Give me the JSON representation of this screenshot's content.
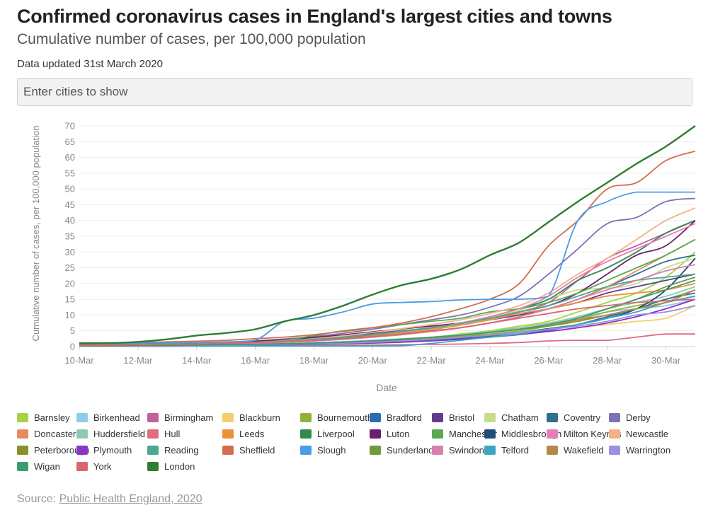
{
  "header": {
    "title": "Confirmed coronavirus cases in England's largest cities and towns",
    "subtitle": "Cumulative number of cases, per 100,000 population",
    "updated": "Data updated 31st March 2020"
  },
  "search": {
    "placeholder": "Enter cities to show"
  },
  "footer": {
    "source_prefix": "Source: ",
    "source_link": "Public Health England, 2020"
  },
  "chart_data": {
    "type": "line",
    "xlabel": "Date",
    "ylabel": "Cumulative number of cases, per 100,000 population",
    "ylim": [
      0,
      70
    ],
    "yticks": [
      0,
      5,
      10,
      15,
      20,
      25,
      30,
      35,
      40,
      45,
      50,
      55,
      60,
      65,
      70
    ],
    "x": [
      "10-Mar",
      "11-Mar",
      "12-Mar",
      "13-Mar",
      "14-Mar",
      "15-Mar",
      "16-Mar",
      "17-Mar",
      "18-Mar",
      "19-Mar",
      "20-Mar",
      "21-Mar",
      "22-Mar",
      "23-Mar",
      "24-Mar",
      "25-Mar",
      "26-Mar",
      "27-Mar",
      "28-Mar",
      "29-Mar",
      "30-Mar",
      "31-Mar"
    ],
    "xticklabels": [
      "10-Mar",
      "12-Mar",
      "14-Mar",
      "16-Mar",
      "18-Mar",
      "20-Mar",
      "22-Mar",
      "24-Mar",
      "26-Mar",
      "28-Mar",
      "30-Mar"
    ],
    "grid": true,
    "legend_position": "bottom",
    "series": [
      {
        "name": "Barnsley",
        "color": "#a6d33f",
        "values": [
          0.3,
          0.3,
          0.4,
          0.4,
          0.5,
          0.6,
          0.8,
          1,
          1.2,
          1.5,
          2,
          2.5,
          3,
          4,
          5,
          6.5,
          8,
          11,
          14,
          17,
          22,
          30
        ]
      },
      {
        "name": "Birkenhead",
        "color": "#8fcdec",
        "values": [
          0.5,
          0.5,
          0.6,
          0.6,
          0.7,
          0.8,
          0.9,
          1.1,
          1.3,
          1.6,
          2,
          2.4,
          2.8,
          3.5,
          4.5,
          5.5,
          7,
          9,
          11,
          12,
          13,
          15
        ]
      },
      {
        "name": "Birmingham",
        "color": "#c1609f",
        "values": [
          0.8,
          0.8,
          0.9,
          1,
          1.1,
          1.3,
          1.6,
          2,
          2.6,
          3.3,
          4.2,
          5,
          6,
          7.5,
          9,
          11,
          14,
          21,
          28,
          32,
          36,
          40
        ]
      },
      {
        "name": "Blackburn",
        "color": "#f2cf6e",
        "values": [
          0.3,
          0.3,
          0.3,
          0.4,
          0.4,
          0.5,
          0.6,
          0.7,
          0.9,
          1.1,
          1.4,
          1.7,
          2,
          2.5,
          3,
          3.8,
          4.8,
          6,
          7,
          8,
          9,
          13
        ]
      },
      {
        "name": "Bournemouth",
        "color": "#8fb43a",
        "values": [
          0.3,
          0.3,
          0.4,
          0.4,
          0.5,
          0.6,
          0.7,
          0.9,
          1.1,
          1.4,
          1.8,
          2.2,
          2.7,
          3.3,
          4,
          5,
          6.5,
          8.5,
          11,
          13,
          15,
          18
        ]
      },
      {
        "name": "Bradford",
        "color": "#2b6cb0",
        "values": [
          0.2,
          0.2,
          0.3,
          0.3,
          0.4,
          0.5,
          0.6,
          0.7,
          0.9,
          1.1,
          1.4,
          1.7,
          2.1,
          2.6,
          3.2,
          4,
          5.2,
          7,
          9.5,
          12,
          15,
          17
        ]
      },
      {
        "name": "Bristol",
        "color": "#5f3c8e",
        "values": [
          0.5,
          0.5,
          0.6,
          0.7,
          0.8,
          1,
          1.3,
          1.8,
          2.5,
          3.3,
          4.2,
          5,
          5.8,
          7,
          8.5,
          10,
          12,
          14,
          17,
          19,
          21,
          23
        ]
      },
      {
        "name": "Chatham",
        "color": "#c7dd8c",
        "values": [
          0.3,
          0.3,
          0.4,
          0.5,
          0.6,
          0.8,
          1,
          1.3,
          1.8,
          2.5,
          3.5,
          4.5,
          5.5,
          7,
          9,
          11.5,
          15,
          18,
          18.5,
          20,
          25,
          28
        ]
      },
      {
        "name": "Coventry",
        "color": "#2f6e8e",
        "values": [
          0.4,
          0.4,
          0.5,
          0.6,
          0.7,
          0.9,
          1.1,
          1.4,
          1.8,
          2.3,
          3,
          3.8,
          4.8,
          6,
          7.5,
          9.5,
          12,
          15,
          19,
          23,
          27,
          29
        ]
      },
      {
        "name": "Derby",
        "color": "#7b74b4",
        "values": [
          0.8,
          0.8,
          0.9,
          1,
          1.2,
          1.4,
          1.8,
          2.4,
          3.2,
          4.2,
          5.5,
          7,
          8.5,
          10,
          12.5,
          16,
          23,
          31,
          39,
          41,
          46,
          47
        ]
      },
      {
        "name": "Doncaster",
        "color": "#e58b5c",
        "values": [
          0.4,
          0.4,
          0.5,
          0.6,
          0.7,
          0.9,
          1.1,
          1.4,
          1.8,
          2.3,
          3,
          3.8,
          4.8,
          6,
          7.5,
          9.5,
          12,
          15,
          19,
          24,
          29,
          34
        ]
      },
      {
        "name": "Huddersfield",
        "color": "#8ec9b4",
        "values": [
          0.3,
          0.3,
          0.4,
          0.4,
          0.5,
          0.6,
          0.7,
          0.9,
          1.2,
          1.5,
          1.9,
          2.4,
          3,
          3.8,
          4.8,
          6,
          7.5,
          9.5,
          12,
          14,
          16,
          19
        ]
      },
      {
        "name": "Hull",
        "color": "#e36b7f",
        "values": [
          0.1,
          0.1,
          0.1,
          0.1,
          0.2,
          0.2,
          0.2,
          0.3,
          0.3,
          0.4,
          0.5,
          0.6,
          0.7,
          0.8,
          1,
          1.3,
          1.8,
          2,
          2,
          3,
          4,
          4
        ]
      },
      {
        "name": "Leeds",
        "color": "#ec9338",
        "values": [
          0.5,
          0.5,
          0.6,
          0.7,
          0.8,
          1,
          1.2,
          1.5,
          2,
          2.6,
          3.4,
          4.3,
          5.4,
          6.8,
          8.5,
          10.5,
          12,
          14,
          16,
          17,
          18,
          20
        ]
      },
      {
        "name": "Liverpool",
        "color": "#2f8a4e",
        "values": [
          0.5,
          0.5,
          0.6,
          0.7,
          0.8,
          1,
          1.3,
          1.7,
          2.2,
          2.9,
          3.8,
          4.8,
          6,
          7.5,
          9.5,
          12,
          15,
          21,
          25,
          30,
          36,
          40
        ]
      },
      {
        "name": "Luton",
        "color": "#6a1f6a",
        "values": [
          0.8,
          0.8,
          0.9,
          1,
          1.2,
          1.4,
          1.7,
          2.2,
          2.9,
          3.7,
          4.7,
          5.6,
          6.5,
          7.5,
          9,
          11,
          13,
          17,
          23,
          29,
          32,
          40
        ]
      },
      {
        "name": "Manchester",
        "color": "#5aa851",
        "values": [
          0.6,
          0.6,
          0.7,
          0.8,
          0.9,
          1.1,
          1.4,
          2,
          3.5,
          5,
          6,
          7,
          8,
          9,
          11,
          12,
          14,
          17,
          21,
          25,
          29,
          34
        ]
      },
      {
        "name": "Middlesbrough",
        "color": "#1f4e79",
        "values": [
          0.3,
          0.3,
          0.3,
          0.4,
          0.4,
          0.5,
          0.6,
          0.7,
          0.9,
          1.1,
          1.4,
          1.8,
          2.3,
          2.9,
          3.6,
          4.5,
          5.7,
          7,
          9,
          12,
          18,
          28
        ]
      },
      {
        "name": "Milton Keynes",
        "color": "#e87eb8",
        "values": [
          0.5,
          0.5,
          0.6,
          0.7,
          0.8,
          1,
          1.3,
          1.7,
          2.3,
          3,
          3.9,
          4.9,
          6,
          7.5,
          9.5,
          12,
          16,
          22,
          27,
          31,
          35,
          39
        ]
      },
      {
        "name": "Newcastle",
        "color": "#f4b183",
        "values": [
          0.5,
          0.5,
          0.6,
          0.7,
          0.8,
          1,
          1.3,
          1.8,
          2.5,
          3.4,
          4.5,
          5.7,
          7,
          8.5,
          10.5,
          13,
          17,
          23,
          28,
          34,
          40,
          44
        ]
      },
      {
        "name": "Peterborough",
        "color": "#8b8f2e",
        "values": [
          0.3,
          0.3,
          0.3,
          0.4,
          0.5,
          0.6,
          0.7,
          0.9,
          1.1,
          1.4,
          1.8,
          2.3,
          2.9,
          3.6,
          4.5,
          5.5,
          6.5,
          8,
          10,
          12,
          14,
          16
        ]
      },
      {
        "name": "Plymouth",
        "color": "#8a35c5",
        "values": [
          0.3,
          0.3,
          0.3,
          0.3,
          0.4,
          0.4,
          0.5,
          0.6,
          0.7,
          0.9,
          1.1,
          1.4,
          1.8,
          2.3,
          3,
          3.8,
          4.8,
          6,
          7.5,
          9.5,
          12,
          15
        ]
      },
      {
        "name": "Reading",
        "color": "#4aa88f",
        "values": [
          0.5,
          0.5,
          0.6,
          0.7,
          0.8,
          1,
          1.3,
          1.7,
          2.3,
          3,
          3.9,
          4.9,
          6,
          7.3,
          9,
          11,
          13,
          16,
          19,
          21,
          22,
          23
        ]
      },
      {
        "name": "Sheffield",
        "color": "#d36d4e",
        "values": [
          1.2,
          1.2,
          1.3,
          1.5,
          1.7,
          2,
          2.5,
          3,
          3.8,
          4.8,
          6,
          7.5,
          9.5,
          12,
          15,
          20,
          32,
          40,
          50,
          52,
          59,
          62
        ]
      },
      {
        "name": "Slough",
        "color": "#4a9be8",
        "values": [
          1,
          1,
          1.1,
          1.2,
          1.3,
          1.5,
          2,
          8,
          9,
          11,
          13.5,
          14,
          14.3,
          14.8,
          15,
          15,
          16,
          40,
          46,
          49,
          49,
          49
        ]
      },
      {
        "name": "Sunderland",
        "color": "#6f9a3e",
        "values": [
          0.3,
          0.3,
          0.4,
          0.4,
          0.5,
          0.6,
          0.7,
          0.9,
          1.1,
          1.4,
          1.8,
          2.3,
          2.9,
          3.6,
          4.5,
          5.5,
          7,
          9,
          12,
          15,
          19,
          22
        ]
      },
      {
        "name": "Swindon",
        "color": "#d97fb0",
        "values": [
          0.4,
          0.4,
          0.5,
          0.6,
          0.7,
          0.9,
          1.1,
          1.4,
          1.8,
          2.3,
          3,
          3.8,
          4.8,
          6,
          7.5,
          9.5,
          12,
          15,
          18,
          21,
          24,
          26
        ]
      },
      {
        "name": "Telford",
        "color": "#3aa6c0",
        "values": [
          0.2,
          0.2,
          0.2,
          0.2,
          0.2,
          0.2,
          0.2,
          0.2,
          0.2,
          0.2,
          0.2,
          0.3,
          1,
          2,
          3,
          4,
          5.5,
          7,
          9,
          11,
          14,
          16
        ]
      },
      {
        "name": "Wakefield",
        "color": "#b6864a",
        "values": [
          0.3,
          0.3,
          0.4,
          0.4,
          0.5,
          0.6,
          0.7,
          0.9,
          1.1,
          1.4,
          1.8,
          2.3,
          2.9,
          3.6,
          4.5,
          5.5,
          7,
          8.5,
          10,
          12,
          14,
          18
        ]
      },
      {
        "name": "Warrington",
        "color": "#9b8fe0",
        "values": [
          0.3,
          0.3,
          0.3,
          0.4,
          0.4,
          0.5,
          0.6,
          0.7,
          0.9,
          1.1,
          1.4,
          1.8,
          2.3,
          2.9,
          3.6,
          4.5,
          5.5,
          6.5,
          8,
          10,
          11,
          13
        ]
      },
      {
        "name": "Wigan",
        "color": "#3c9d6e",
        "values": [
          0.3,
          0.3,
          0.4,
          0.4,
          0.5,
          0.6,
          0.7,
          0.9,
          1.1,
          1.4,
          1.8,
          2.3,
          2.9,
          3.6,
          4.5,
          5.5,
          7,
          9,
          12,
          15,
          18,
          21
        ]
      },
      {
        "name": "York",
        "color": "#d9666f",
        "values": [
          0.5,
          0.5,
          0.6,
          0.7,
          0.8,
          1,
          1.3,
          1.6,
          2,
          2.5,
          3.2,
          4,
          5,
          6,
          7.5,
          9,
          10.5,
          12,
          13,
          14,
          14.5,
          15
        ]
      },
      {
        "name": "London",
        "color": "#2e7d32",
        "values": [
          1,
          1.1,
          1.5,
          2.3,
          3.5,
          4.3,
          5.5,
          8,
          10,
          13,
          16.5,
          19.5,
          21.5,
          24.5,
          29,
          33,
          39.5,
          46,
          52,
          58,
          63.5,
          70
        ]
      }
    ]
  }
}
